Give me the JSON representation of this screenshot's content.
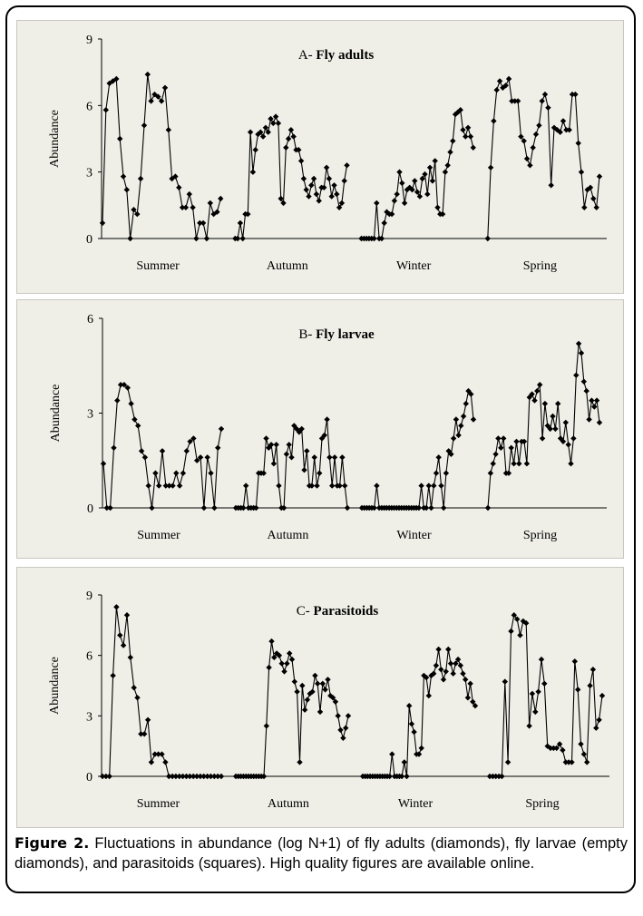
{
  "figure": {
    "caption_label": "Figure 2.",
    "caption_text": " Fluctuations in abundance (log N+1) of fly adults (diamonds), fly larvae (empty diamonds), and parasitoids (squares). High quality figures are available online."
  },
  "chart_data": [
    {
      "type": "line",
      "title_prefix": "A-",
      "title": "Fly adults",
      "ylabel": "Abundance",
      "ylim": [
        0,
        9
      ],
      "yticks": [
        0,
        3,
        6,
        9
      ],
      "season_labels": [
        "Summer",
        "Autumn",
        "Winter",
        "Spring"
      ],
      "marker": "diamond",
      "series_color": "#000000",
      "segments": [
        {
          "season": "Summer",
          "values": [
            0.7,
            5.8,
            7.0,
            7.1,
            7.2,
            4.5,
            2.8,
            2.2,
            0.0,
            1.3,
            1.1,
            2.7,
            5.1,
            7.4,
            6.2,
            6.5,
            6.4,
            6.2,
            6.8,
            4.9,
            2.7,
            2.8,
            2.3,
            1.4,
            1.4,
            2.0,
            1.4,
            0.0,
            0.7,
            0.7,
            0.0,
            1.6,
            1.1,
            1.2,
            1.8
          ]
        },
        {
          "season": "Autumn",
          "values": [
            0.0,
            0.0,
            0.7,
            0.0,
            1.1,
            1.1,
            4.8,
            3.0,
            4.0,
            4.7,
            4.8,
            4.6,
            5.0,
            4.8,
            5.4,
            5.2,
            5.5,
            5.2,
            1.8,
            1.6,
            4.1,
            4.5,
            4.9,
            4.6,
            4.0,
            4.0,
            3.5,
            2.7,
            2.2,
            1.9,
            2.4,
            2.7,
            2.0,
            1.7,
            2.3,
            2.3,
            3.2,
            2.7,
            1.9,
            2.4,
            2.0,
            1.4,
            1.6,
            2.6,
            3.3
          ]
        },
        {
          "season": "Winter",
          "values": [
            0.0,
            0.0,
            0.0,
            0.0,
            0.0,
            0.0,
            1.6,
            0.0,
            0.0,
            0.7,
            1.2,
            1.1,
            1.1,
            1.7,
            2.0,
            3.0,
            2.5,
            1.6,
            2.2,
            2.3,
            2.2,
            2.6,
            2.1,
            1.9,
            2.7,
            2.9,
            2.0,
            3.2,
            2.6,
            3.5,
            1.4,
            1.1,
            1.1,
            3.0,
            3.3,
            3.9,
            4.4,
            5.6,
            5.7,
            5.8,
            4.9,
            4.6,
            5.0,
            4.6,
            4.1
          ]
        },
        {
          "season": "Spring",
          "values": [
            0.0,
            3.2,
            5.3,
            6.7,
            7.1,
            6.8,
            6.9,
            7.2,
            6.2,
            6.2,
            6.2,
            4.6,
            4.4,
            3.6,
            3.3,
            4.1,
            4.7,
            5.1,
            6.2,
            6.5,
            5.9,
            2.4,
            5.0,
            4.9,
            4.8,
            5.3,
            4.9,
            4.9,
            6.5,
            6.5,
            4.3,
            3.0,
            1.4,
            2.2,
            2.3,
            1.8,
            1.4,
            2.8
          ]
        }
      ]
    },
    {
      "type": "line",
      "title_prefix": "B-",
      "title": "Fly larvae",
      "ylabel": "Abundance",
      "ylim": [
        0,
        6
      ],
      "yticks": [
        0,
        3,
        6
      ],
      "season_labels": [
        "Summer",
        "Autumn",
        "Winter",
        "Spring"
      ],
      "marker": "diamond",
      "series_color": "#000000",
      "segments": [
        {
          "season": "Summer",
          "values": [
            1.4,
            0.0,
            0.0,
            1.9,
            3.4,
            3.9,
            3.9,
            3.8,
            3.3,
            2.8,
            2.6,
            1.8,
            1.6,
            0.7,
            0.0,
            1.1,
            0.7,
            1.8,
            0.7,
            0.7,
            0.7,
            1.1,
            0.7,
            1.1,
            1.8,
            2.1,
            2.2,
            1.5,
            1.6,
            0.0,
            1.6,
            1.1,
            0.0,
            1.9,
            2.5
          ]
        },
        {
          "season": "Autumn",
          "values": [
            0.0,
            0.0,
            0.0,
            0.0,
            0.7,
            0.0,
            0.0,
            0.0,
            0.0,
            1.1,
            1.1,
            1.1,
            2.2,
            1.9,
            2.0,
            1.4,
            2.0,
            0.7,
            0.0,
            0.0,
            1.7,
            2.0,
            1.6,
            2.6,
            2.5,
            2.4,
            2.5,
            1.2,
            1.8,
            0.7,
            0.7,
            1.6,
            0.7,
            1.1,
            2.2,
            2.3,
            2.8,
            1.6,
            0.7,
            1.6,
            0.7,
            0.7,
            1.6,
            0.7,
            0.0
          ]
        },
        {
          "season": "Winter",
          "values": [
            0.0,
            0.0,
            0.0,
            0.0,
            0.0,
            0.0,
            0.7,
            0.0,
            0.0,
            0.0,
            0.0,
            0.0,
            0.0,
            0.0,
            0.0,
            0.0,
            0.0,
            0.0,
            0.0,
            0.0,
            0.0,
            0.0,
            0.0,
            0.0,
            0.7,
            0.0,
            0.0,
            0.7,
            0.0,
            0.7,
            1.1,
            1.6,
            0.7,
            0.0,
            1.1,
            1.8,
            1.7,
            2.2,
            2.8,
            2.3,
            2.6,
            2.9,
            3.3,
            3.7,
            3.6,
            2.8
          ]
        },
        {
          "season": "Spring",
          "values": [
            0.0,
            1.1,
            1.4,
            1.7,
            2.2,
            1.9,
            2.2,
            1.1,
            1.1,
            1.9,
            1.4,
            2.1,
            1.4,
            2.1,
            2.1,
            1.4,
            3.5,
            3.6,
            3.4,
            3.7,
            3.9,
            2.2,
            3.3,
            2.6,
            2.5,
            2.9,
            2.5,
            3.3,
            2.2,
            2.1,
            2.7,
            2.0,
            1.4,
            2.2,
            4.2,
            5.2,
            4.9,
            4.0,
            3.7,
            2.8,
            3.4,
            3.2,
            3.4,
            2.7
          ]
        }
      ]
    },
    {
      "type": "line",
      "title_prefix": "C-",
      "title": "Parasitoids",
      "ylabel": "Abundance",
      "ylim": [
        0,
        9
      ],
      "yticks": [
        0,
        3,
        6,
        9
      ],
      "season_labels": [
        "Summer",
        "Autumn",
        "Winter",
        "Spring"
      ],
      "marker": "diamond",
      "series_color": "#000000",
      "segments": [
        {
          "season": "Summer",
          "values": [
            0.0,
            0.0,
            0.0,
            5.0,
            8.4,
            7.0,
            6.5,
            8.0,
            5.9,
            4.4,
            3.9,
            2.1,
            2.1,
            2.8,
            0.7,
            1.1,
            1.1,
            1.1,
            0.7,
            0.0,
            0.0,
            0.0,
            0.0,
            0.0,
            0.0,
            0.0,
            0.0,
            0.0,
            0.0,
            0.0,
            0.0,
            0.0,
            0.0,
            0.0,
            0.0
          ]
        },
        {
          "season": "Autumn",
          "values": [
            0.0,
            0.0,
            0.0,
            0.0,
            0.0,
            0.0,
            0.0,
            0.0,
            0.0,
            0.0,
            0.0,
            0.0,
            2.5,
            5.4,
            6.7,
            5.9,
            6.1,
            6.0,
            5.6,
            5.2,
            5.6,
            6.1,
            5.8,
            4.7,
            4.2,
            0.7,
            4.5,
            3.3,
            3.8,
            4.1,
            4.2,
            5.0,
            4.6,
            3.2,
            4.6,
            4.3,
            4.8,
            4.0,
            3.9,
            3.7,
            3.0,
            2.3,
            1.9,
            2.4,
            3.0
          ]
        },
        {
          "season": "Winter",
          "values": [
            0.0,
            0.0,
            0.0,
            0.0,
            0.0,
            0.0,
            0.0,
            0.0,
            0.0,
            0.0,
            0.0,
            0.0,
            1.1,
            0.0,
            0.0,
            0.0,
            0.0,
            0.7,
            0.0,
            3.5,
            2.6,
            2.2,
            1.1,
            1.1,
            1.4,
            5.0,
            4.9,
            4.0,
            5.0,
            5.1,
            5.5,
            6.3,
            5.3,
            4.8,
            5.2,
            6.3,
            5.6,
            5.1,
            5.6,
            5.8,
            5.5,
            5.1,
            4.8,
            3.9,
            4.6,
            3.7,
            3.5
          ]
        },
        {
          "season": "Spring",
          "values": [
            0.0,
            0.0,
            0.0,
            0.0,
            0.0,
            4.7,
            0.7,
            7.2,
            8.0,
            7.8,
            7.0,
            7.7,
            7.6,
            2.5,
            4.1,
            3.2,
            4.2,
            5.8,
            4.6,
            1.5,
            1.4,
            1.4,
            1.4,
            1.6,
            1.3,
            0.7,
            0.7,
            0.7,
            5.7,
            4.3,
            1.6,
            1.1,
            0.7,
            4.5,
            5.3,
            2.4,
            2.8,
            4.0
          ]
        }
      ]
    }
  ]
}
